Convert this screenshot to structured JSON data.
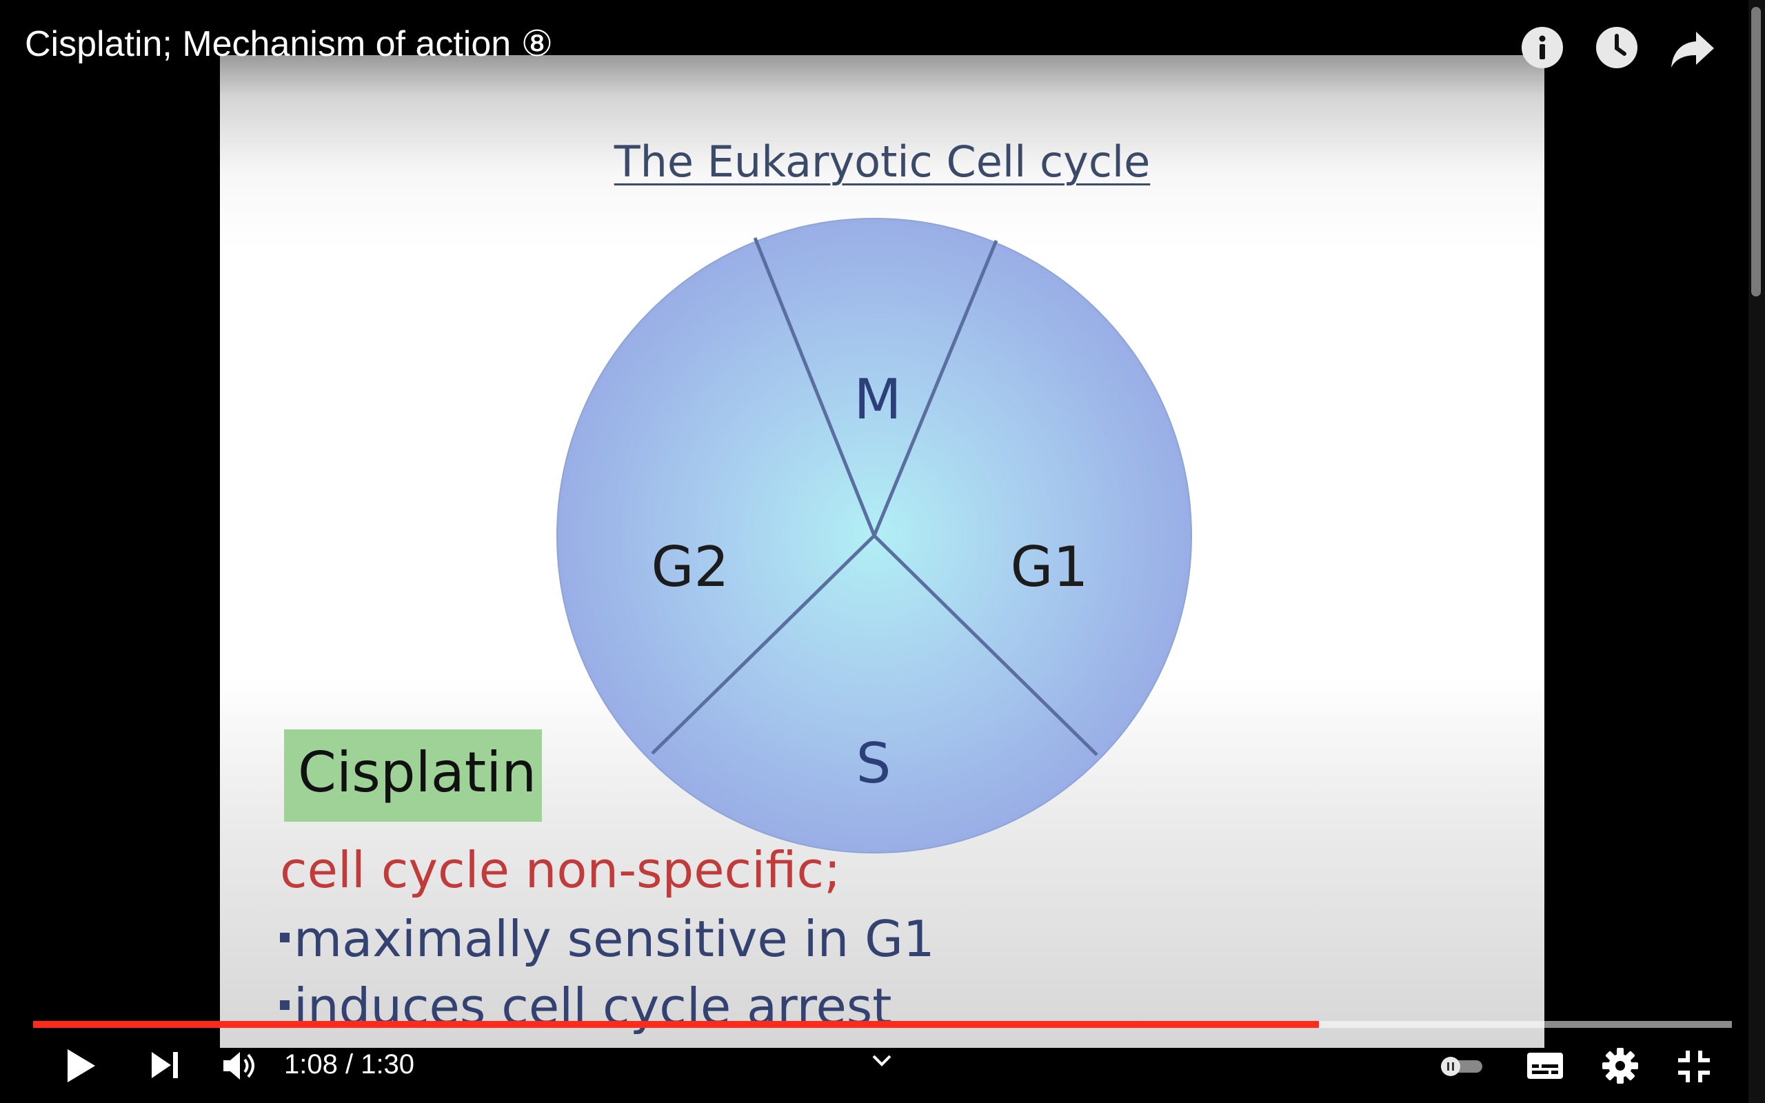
{
  "video": {
    "title": "Cisplatin; Mechanism of action ⑧",
    "time_display": "1:08 / 1:30",
    "progress": 0.757
  },
  "slide": {
    "title": "The Eukaryotic Cell cycle",
    "phases": {
      "m": "M",
      "g1": "G1",
      "s": "S",
      "g2": "G2"
    },
    "drug_label": "Cisplatin",
    "line1": "cell cycle non-specific;",
    "line2": "maximally sensitive in G1",
    "line3": "induces cell cycle arrest"
  },
  "icons": {
    "info": "info-icon",
    "watch_later": "clock-icon",
    "share": "share-icon",
    "play": "play-icon",
    "next": "next-icon",
    "volume": "volume-icon",
    "chevron": "chevron-down-icon",
    "autoplay": "autoplay-toggle-icon",
    "captions": "captions-icon",
    "settings": "gear-icon",
    "exit_fullscreen": "exit-fullscreen-icon"
  },
  "colors": {
    "progress": "#ff2a1a",
    "drug_box": "#9ed297",
    "red_text": "#c23b3b",
    "blue_text": "#334270"
  }
}
